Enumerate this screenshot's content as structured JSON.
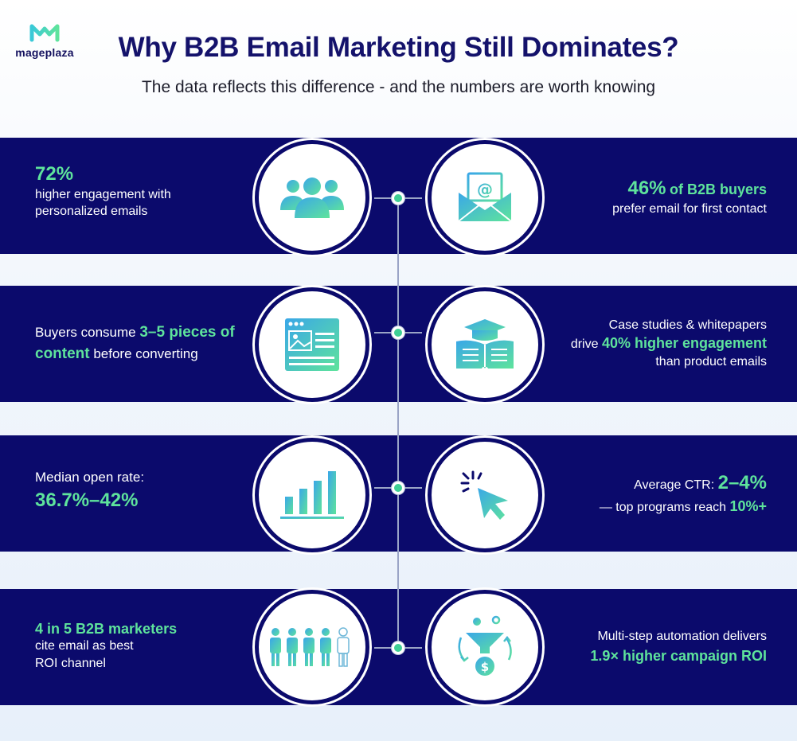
{
  "brand": {
    "name": "mageplaza"
  },
  "header": {
    "title": "Why B2B Email Marketing Still Dominates?",
    "subtitle": "The data reflects this difference - and the numbers are worth knowing"
  },
  "colors": {
    "navy": "#0b0a6c",
    "accent_green": "#5ee39c",
    "title": "#14126b"
  },
  "rows": [
    {
      "left": {
        "icon": "people-group-icon",
        "stat": "72%",
        "line1": "higher engagement with",
        "line2": "personalized emails"
      },
      "right": {
        "icon": "email-envelope-icon",
        "highlight": "46%",
        "highlight2": "of B2B buyers",
        "line1": "prefer email for first contact"
      }
    },
    {
      "left": {
        "icon": "web-content-icon",
        "pre": "Buyers consume ",
        "highlight": "3–5 pieces of",
        "highlight2": "content",
        "post": " before converting"
      },
      "right": {
        "icon": "graduation-book-icon",
        "line1": "Case studies & whitepapers",
        "pre": "drive ",
        "highlight": "40% higher engagement",
        "line2": "than product emails"
      }
    },
    {
      "left": {
        "icon": "bar-chart-icon",
        "line1": "Median open rate:",
        "highlight": "36.7%–42%"
      },
      "right": {
        "icon": "cursor-click-icon",
        "pre": "Average CTR: ",
        "highlight": "2–4%",
        "pre2": "— top programs reach ",
        "highlight2": "10%+"
      }
    },
    {
      "left": {
        "icon": "people-row-icon",
        "highlight": "4 in 5 B2B marketers",
        "line1": "cite email as best",
        "line2": "ROI channel"
      },
      "right": {
        "icon": "funnel-roi-icon",
        "line1": "Multi-step automation delivers",
        "highlight": "1.9× higher campaign ROI"
      }
    }
  ]
}
